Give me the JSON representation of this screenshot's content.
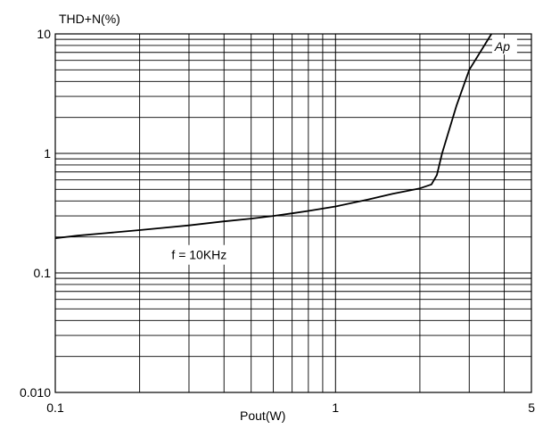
{
  "chart_data": {
    "type": "line",
    "title": "",
    "ylabel": "THD+N(%)",
    "xlabel": "Pout(W)",
    "xscale": "log",
    "yscale": "log",
    "xlim": [
      0.1,
      5
    ],
    "ylim": [
      0.01,
      10
    ],
    "grid": true,
    "x_tick_labels": [
      {
        "value": 0.1,
        "label": "0.1"
      },
      {
        "value": 1,
        "label": "1"
      },
      {
        "value": 5,
        "label": "5"
      }
    ],
    "y_tick_labels": [
      {
        "value": 10,
        "label": "10"
      },
      {
        "value": 1,
        "label": "1"
      },
      {
        "value": 0.1,
        "label": "0.1"
      },
      {
        "value": 0.01,
        "label": "0.010"
      }
    ],
    "annotation": "f = 10KHz",
    "series": [
      {
        "name": "Ap",
        "color": "#000000",
        "x": [
          0.1,
          0.12,
          0.15,
          0.2,
          0.3,
          0.4,
          0.5,
          0.6,
          0.7,
          0.8,
          1.0,
          1.3,
          1.6,
          2.0,
          2.2,
          2.3,
          2.4,
          2.7,
          3.0,
          3.6
        ],
        "y": [
          0.195,
          0.205,
          0.215,
          0.228,
          0.25,
          0.27,
          0.285,
          0.3,
          0.315,
          0.33,
          0.36,
          0.41,
          0.46,
          0.51,
          0.55,
          0.66,
          1.0,
          2.5,
          5.0,
          10.0
        ]
      }
    ]
  }
}
